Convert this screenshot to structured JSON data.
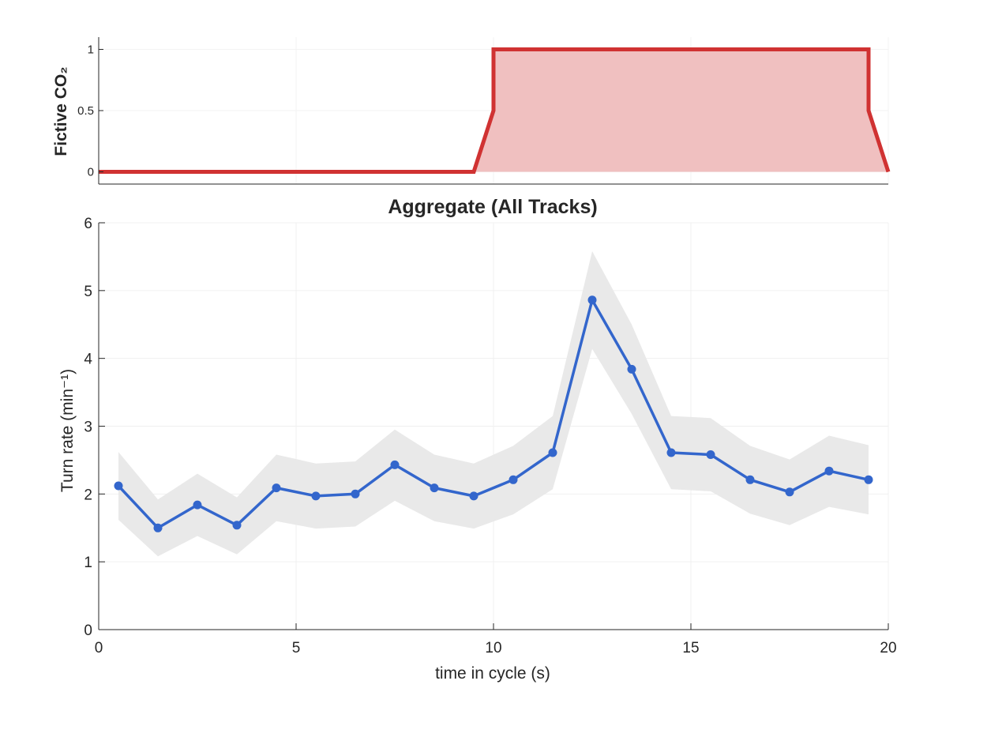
{
  "chart_data": [
    {
      "type": "area",
      "ylabel": "Fictive CO₂",
      "xlim": [
        0,
        20
      ],
      "ylim": [
        -0.1,
        1.1
      ],
      "yticks": [
        "0",
        "0.5",
        "1"
      ],
      "grid": true,
      "series": [
        {
          "color": "#d03232",
          "fill": "#f0c0c0",
          "x": [
            0,
            9.5,
            10,
            10,
            19.5,
            19.5,
            20
          ],
          "y": [
            0,
            0,
            0.5,
            1,
            1,
            0.5,
            0
          ]
        }
      ]
    },
    {
      "type": "line",
      "title": "Aggregate (All Tracks)",
      "xlabel": "time in cycle (s)",
      "ylabel": "Turn rate (min⁻¹)",
      "xlim": [
        0,
        20
      ],
      "ylim": [
        0,
        6
      ],
      "xticks": [
        "0",
        "5",
        "10",
        "15",
        "20"
      ],
      "yticks": [
        "0",
        "1",
        "2",
        "3",
        "4",
        "5",
        "6"
      ],
      "grid": true,
      "series": [
        {
          "color": "#3366cc",
          "band_color": "#e9e9e9",
          "x": [
            0.5,
            1.5,
            2.5,
            3.5,
            4.5,
            5.5,
            6.5,
            7.5,
            8.5,
            9.5,
            10.5,
            11.5,
            12.5,
            13.5,
            14.5,
            15.5,
            16.5,
            17.5,
            18.5,
            19.5
          ],
          "y": [
            2.12,
            1.5,
            1.84,
            1.54,
            2.09,
            1.97,
            2.0,
            2.43,
            2.09,
            1.97,
            2.21,
            2.61,
            4.86,
            3.84,
            2.61,
            2.58,
            2.21,
            2.03,
            2.34,
            2.21
          ],
          "lower": [
            1.62,
            1.08,
            1.38,
            1.11,
            1.6,
            1.49,
            1.52,
            1.9,
            1.6,
            1.49,
            1.7,
            2.07,
            4.14,
            3.18,
            2.07,
            2.04,
            1.71,
            1.54,
            1.81,
            1.7
          ],
          "upper": [
            2.62,
            1.92,
            2.3,
            1.95,
            2.58,
            2.45,
            2.48,
            2.95,
            2.58,
            2.45,
            2.71,
            3.15,
            5.58,
            4.5,
            3.15,
            3.12,
            2.71,
            2.51,
            2.86,
            2.72
          ]
        }
      ]
    }
  ]
}
